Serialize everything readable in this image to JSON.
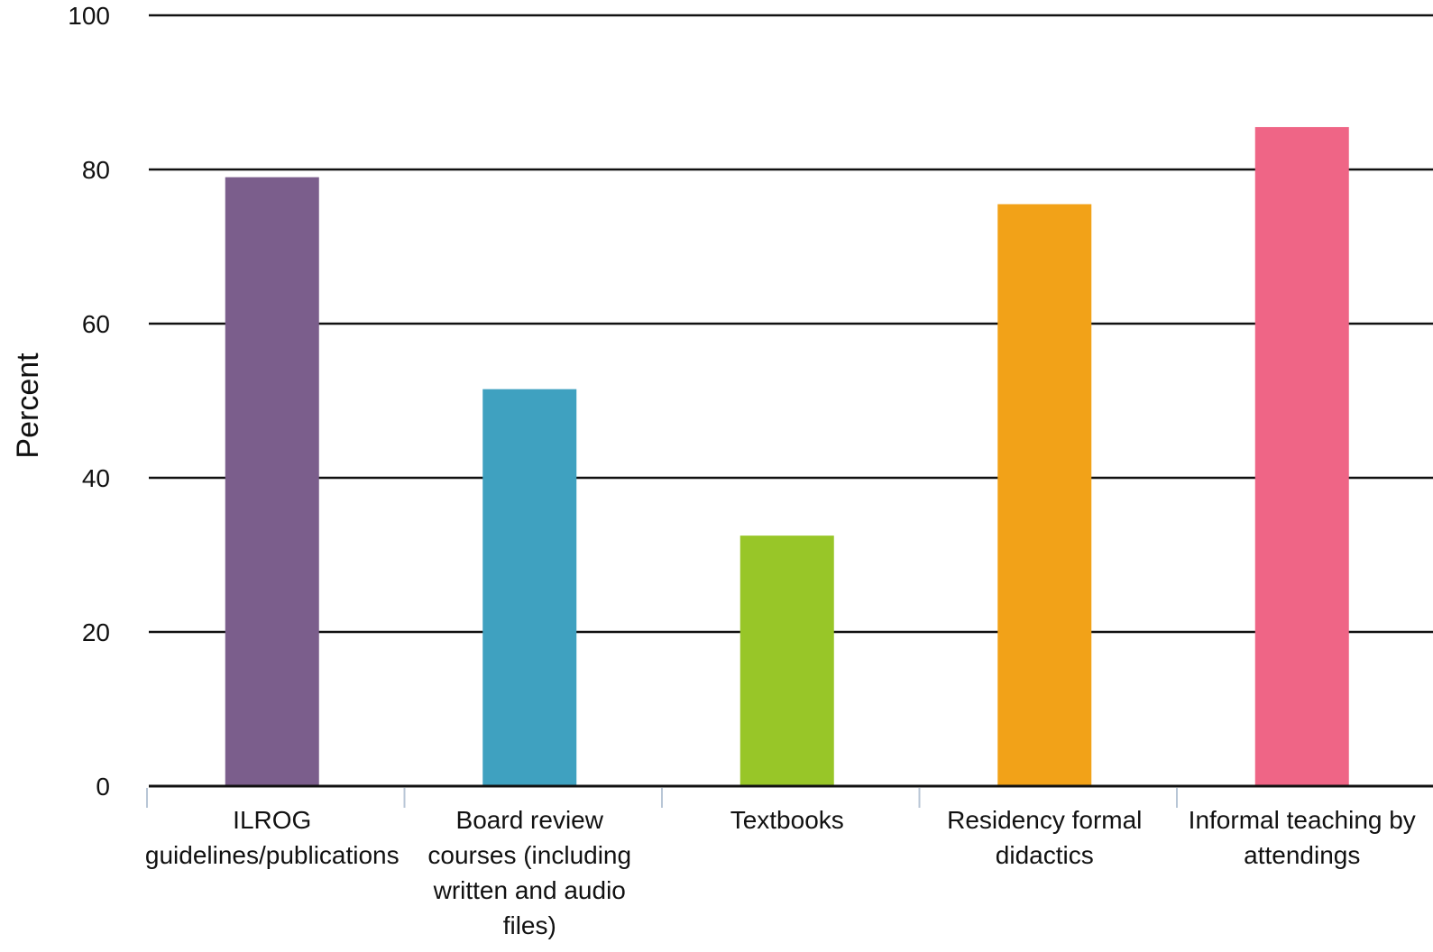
{
  "chart_data": {
    "type": "bar",
    "title": "",
    "xlabel": "",
    "ylabel": "Percent",
    "ylim": [
      0,
      100
    ],
    "yticks": [
      0,
      20,
      40,
      60,
      80,
      100
    ],
    "grid": true,
    "categories": [
      "ILROG guidelines/publications",
      "Board review courses (including written and audio files)",
      "Textbooks",
      "Residency formal didactics",
      "Informal teaching by attendings"
    ],
    "values": [
      79,
      51.5,
      32.5,
      75.5,
      85.5
    ],
    "colors": [
      "#7b5e8c",
      "#3fa1c0",
      "#98c628",
      "#f2a218",
      "#ef6586"
    ]
  }
}
